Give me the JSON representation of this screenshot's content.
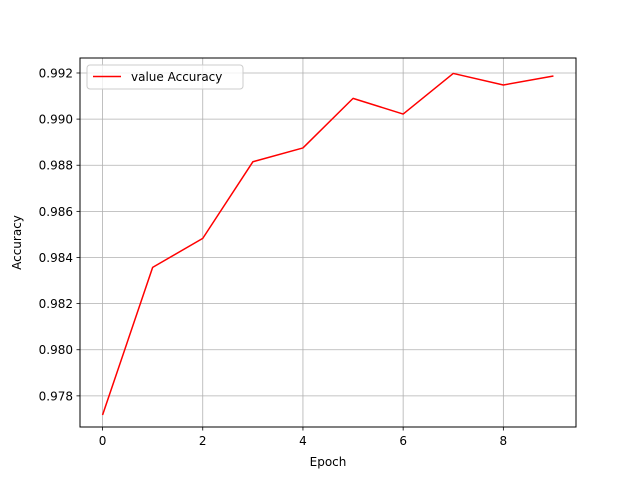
{
  "chart_data": {
    "type": "line",
    "title": "",
    "xlabel": "Epoch",
    "ylabel": "Accuracy",
    "xlim": [
      -0.45,
      9.45
    ],
    "ylim": [
      0.97665,
      0.99265
    ],
    "x_ticks": [
      0,
      2,
      4,
      6,
      8
    ],
    "y_ticks": [
      0.978,
      0.98,
      0.982,
      0.984,
      0.986,
      0.988,
      0.99,
      0.992
    ],
    "grid": true,
    "legend_position": "upper-left",
    "series": [
      {
        "name": "value Accuracy",
        "color": "#ff0000",
        "x": [
          0,
          1,
          2,
          3,
          4,
          5,
          6,
          7,
          8,
          9
        ],
        "values": [
          0.97717,
          0.98357,
          0.98483,
          0.98815,
          0.98875,
          0.9909,
          0.99022,
          0.99198,
          0.99148,
          0.99187
        ]
      }
    ]
  }
}
